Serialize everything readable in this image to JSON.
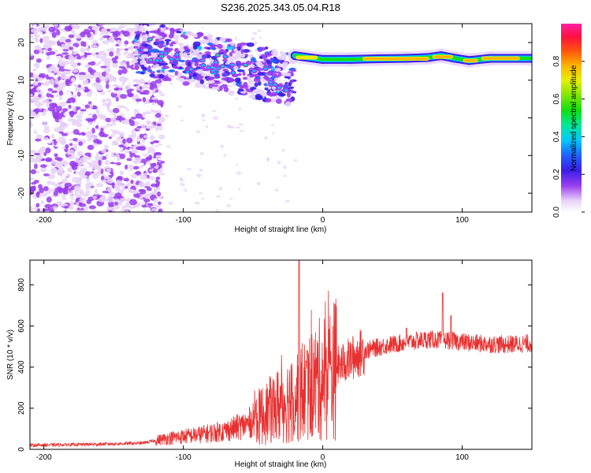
{
  "title": "S236.2025.343.05.04.R18",
  "chart_data": [
    {
      "type": "heatmap",
      "xlabel": "Height of straight line (km)",
      "ylabel": "Frequency (Hz)",
      "xlim": [
        -210,
        150
      ],
      "ylim": [
        -25,
        25
      ],
      "xticks": [
        -200,
        -100,
        0,
        100
      ],
      "xtick_labels": [
        "-200",
        "-100",
        "0",
        "100"
      ],
      "yticks": [
        -20,
        -10,
        0,
        10,
        20
      ],
      "ytick_labels": [
        "-20",
        "-10",
        "0",
        "10",
        "20"
      ],
      "colorbar": {
        "label": "Normalized spectral amplitude",
        "range": [
          0,
          1
        ],
        "ticks": [
          0.0,
          0.2,
          0.4,
          0.6,
          0.8
        ],
        "tick_labels": [
          "0.0",
          "0.2",
          "0.4",
          "0.6",
          "0.8"
        ]
      },
      "ridge": [
        {
          "x": -20,
          "y": 16.5
        },
        {
          "x": 0,
          "y": 15.5
        },
        {
          "x": 20,
          "y": 15.5
        },
        {
          "x": 40,
          "y": 15.7
        },
        {
          "x": 60,
          "y": 15.8
        },
        {
          "x": 75,
          "y": 16.0
        },
        {
          "x": 85,
          "y": 16.5
        },
        {
          "x": 95,
          "y": 15.8
        },
        {
          "x": 105,
          "y": 15.2
        },
        {
          "x": 120,
          "y": 15.8
        },
        {
          "x": 150,
          "y": 15.8
        }
      ],
      "hot_segments": [
        {
          "x0": 30,
          "x1": 75,
          "y": 15.7,
          "value": 0.85
        },
        {
          "x0": 80,
          "x1": 92,
          "y": 16.2,
          "value": 0.8
        },
        {
          "x0": 102,
          "x1": 110,
          "y": 15.2,
          "value": 0.8
        },
        {
          "x0": 115,
          "x1": 140,
          "y": 15.8,
          "value": 0.85
        },
        {
          "x0": -18,
          "x1": -5,
          "y": 16.0,
          "value": 0.75
        }
      ]
    },
    {
      "type": "line",
      "xlabel": "Height of straight line (km)",
      "ylabel": "SNR (10 * v/v)",
      "xlim": [
        -210,
        150
      ],
      "ylim": [
        0,
        920
      ],
      "xticks": [
        -200,
        -100,
        0,
        100
      ],
      "xtick_labels": [
        "-200",
        "-100",
        "0",
        "100"
      ],
      "yticks": [
        0,
        200,
        400,
        600,
        800
      ],
      "ytick_labels": [
        "0",
        "200",
        "400",
        "600",
        "800"
      ],
      "color": "#e83030",
      "series_envelope": [
        {
          "x": -210,
          "y": 20
        },
        {
          "x": -160,
          "y": 25
        },
        {
          "x": -130,
          "y": 30
        },
        {
          "x": -110,
          "y": 55
        },
        {
          "x": -90,
          "y": 70
        },
        {
          "x": -70,
          "y": 90
        },
        {
          "x": -55,
          "y": 120
        },
        {
          "x": -40,
          "y": 180
        },
        {
          "x": -30,
          "y": 220
        },
        {
          "x": -20,
          "y": 260
        },
        {
          "x": -10,
          "y": 300
        },
        {
          "x": 0,
          "y": 350
        },
        {
          "x": 10,
          "y": 400
        },
        {
          "x": 20,
          "y": 440
        },
        {
          "x": 30,
          "y": 480
        },
        {
          "x": 45,
          "y": 505
        },
        {
          "x": 60,
          "y": 520
        },
        {
          "x": 75,
          "y": 535
        },
        {
          "x": 90,
          "y": 530
        },
        {
          "x": 110,
          "y": 515
        },
        {
          "x": 130,
          "y": 510
        },
        {
          "x": 150,
          "y": 515
        }
      ],
      "spikes": [
        {
          "x": -17,
          "y": 920
        },
        {
          "x": 86,
          "y": 760
        },
        {
          "x": 92,
          "y": 650
        },
        {
          "x": -12,
          "y": 430
        },
        {
          "x": 60,
          "y": 590
        }
      ]
    }
  ]
}
